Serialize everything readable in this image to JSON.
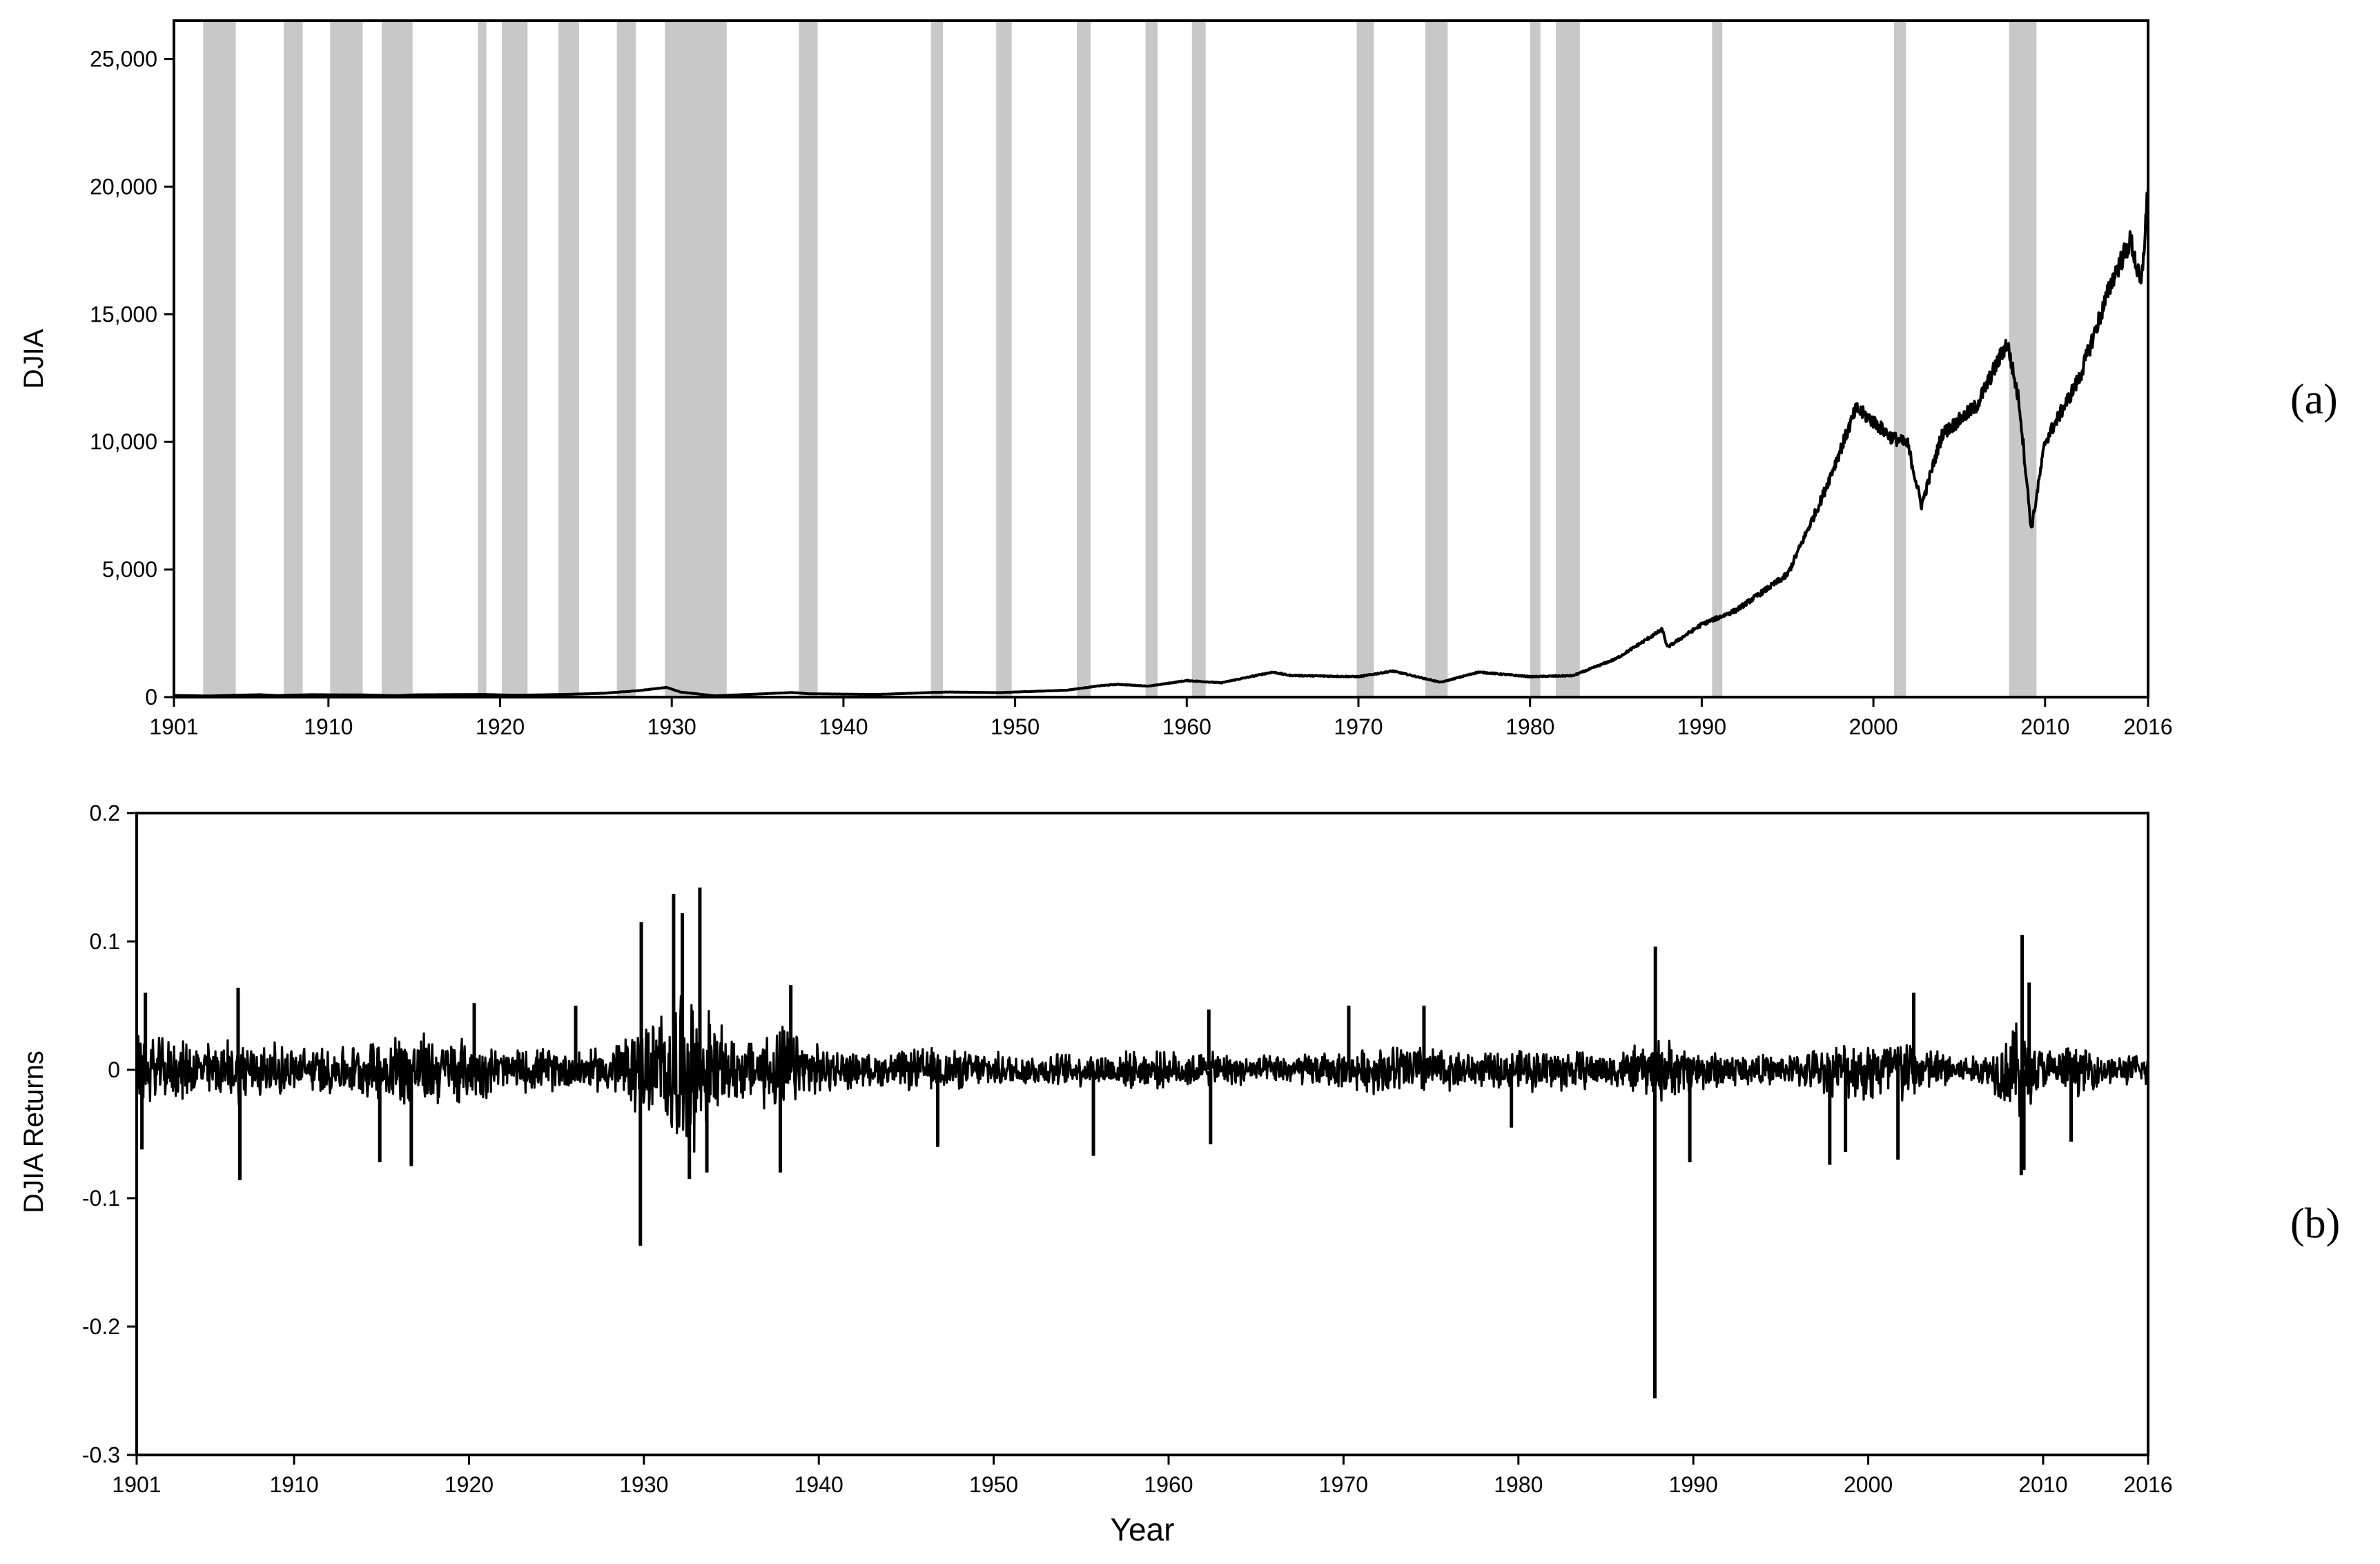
{
  "panel_labels": {
    "a": "(a)",
    "b": "(b)"
  },
  "chart_data": [
    {
      "id": "a",
      "type": "line",
      "title": "",
      "xlabel": "",
      "ylabel": "DJIA",
      "xlim": [
        1901,
        2016
      ],
      "ylim": [
        0,
        26500
      ],
      "x_ticks": [
        1901,
        1910,
        1920,
        1930,
        1940,
        1950,
        1960,
        1970,
        1980,
        1990,
        2000,
        2010,
        2016
      ],
      "x_tick_labels": [
        "1901",
        "1910",
        "1920",
        "1930",
        "1940",
        "1950",
        "1960",
        "1970",
        "1980",
        "1990",
        "2000",
        "2010",
        "2016"
      ],
      "y_ticks": [
        0,
        5000,
        10000,
        15000,
        20000,
        25000
      ],
      "y_tick_labels": [
        "0",
        "5,000",
        "10,000",
        "15,000",
        "20,000",
        "25,000"
      ],
      "grid": false,
      "line_color": "#000000",
      "shade_color": "#c8c8c8",
      "shaded_periods": [
        [
          1902.7,
          1904.6
        ],
        [
          1907.4,
          1908.5
        ],
        [
          1910.1,
          1912.0
        ],
        [
          1913.1,
          1914.9
        ],
        [
          1918.7,
          1919.2
        ],
        [
          1920.1,
          1921.6
        ],
        [
          1923.4,
          1924.6
        ],
        [
          1926.8,
          1927.9
        ],
        [
          1929.6,
          1933.2
        ],
        [
          1937.4,
          1938.5
        ],
        [
          1945.1,
          1945.8
        ],
        [
          1948.9,
          1949.8
        ],
        [
          1953.6,
          1954.4
        ],
        [
          1957.6,
          1958.3
        ],
        [
          1960.3,
          1961.1
        ],
        [
          1969.9,
          1970.9
        ],
        [
          1973.9,
          1975.2
        ],
        [
          1980.0,
          1980.6
        ],
        [
          1981.5,
          1982.9
        ],
        [
          1990.6,
          1991.2
        ],
        [
          2001.2,
          2001.9
        ],
        [
          2007.9,
          2009.5
        ]
      ],
      "series": [
        {
          "x": [
            1901,
            1903,
            1906,
            1907,
            1909,
            1912,
            1914,
            1915,
            1919,
            1921,
            1924,
            1926,
            1928,
            1929.7,
            1930.5,
            1932.5,
            1935,
            1937,
            1938,
            1942,
            1946,
            1949,
            1953,
            1955,
            1956,
            1957.8,
            1960,
            1962,
            1965,
            1966,
            1970,
            1972,
            1974.8,
            1977,
            1980,
            1982.5,
            1985,
            1987.7,
            1988,
            1990,
            1992,
            1995,
            1997,
            1999,
            2000,
            2001,
            2002,
            2002.8,
            2004,
            2006,
            2007.8,
            2008.5,
            2009.2,
            2010,
            2012,
            2014,
            2015,
            2015.6,
            2016
          ],
          "y": [
            65,
            45,
            95,
            60,
            95,
            85,
            55,
            90,
            105,
            70,
            110,
            150,
            250,
            380,
            200,
            50,
            120,
            180,
            130,
            105,
            200,
            175,
            270,
            450,
            500,
            430,
            650,
            560,
            980,
            850,
            800,
            1020,
            580,
            980,
            800,
            840,
            1500,
            2650,
            1950,
            2850,
            3400,
            4800,
            7800,
            11300,
            10800,
            10200,
            9900,
            7500,
            10300,
            11400,
            13900,
            11500,
            6550,
            10000,
            12500,
            16500,
            17900,
            16000,
            20000
          ]
        }
      ]
    },
    {
      "id": "b",
      "type": "line",
      "title": "",
      "xlabel": "Year",
      "ylabel": "DJIA Returns",
      "xlim": [
        1901,
        2016
      ],
      "ylim": [
        -0.3,
        0.2
      ],
      "x_ticks": [
        1901,
        1910,
        1920,
        1930,
        1940,
        1950,
        1960,
        1970,
        1980,
        1990,
        2000,
        2010,
        2016
      ],
      "x_tick_labels": [
        "1901",
        "1910",
        "1920",
        "1930",
        "1940",
        "1950",
        "1960",
        "1970",
        "1980",
        "1990",
        "2000",
        "2010",
        "2016"
      ],
      "y_ticks": [
        -0.3,
        -0.2,
        -0.1,
        0,
        0.1,
        0.2
      ],
      "y_tick_labels": [
        "-0.3",
        "-0.2",
        "-0.1",
        "0",
        "0.1",
        "0.2"
      ],
      "grid": false,
      "line_color": "#000000",
      "volatility_band": {
        "x": [
          1901,
          1905,
          1907,
          1910,
          1914,
          1916,
          1920,
          1922,
          1925,
          1927,
          1928,
          1929.5,
          1930.5,
          1931.5,
          1932.5,
          1933.5,
          1934.5,
          1936,
          1937.5,
          1938.5,
          1940,
          1943,
          1946,
          1950,
          1955,
          1958,
          1962,
          1965,
          1970,
          1974,
          1975,
          1978,
          1980,
          1982,
          1985,
          1987.5,
          1988,
          1990,
          1995,
          1997,
          2000,
          2002,
          2003,
          2006,
          2007,
          2008.5,
          2009,
          2010,
          2012,
          2014,
          2016
        ],
        "half": [
          0.022,
          0.018,
          0.022,
          0.015,
          0.017,
          0.026,
          0.021,
          0.014,
          0.014,
          0.013,
          0.017,
          0.028,
          0.035,
          0.045,
          0.055,
          0.045,
          0.026,
          0.02,
          0.03,
          0.026,
          0.016,
          0.01,
          0.015,
          0.011,
          0.011,
          0.012,
          0.012,
          0.009,
          0.012,
          0.019,
          0.015,
          0.011,
          0.013,
          0.015,
          0.011,
          0.018,
          0.022,
          0.014,
          0.009,
          0.014,
          0.022,
          0.024,
          0.016,
          0.009,
          0.013,
          0.035,
          0.028,
          0.014,
          0.016,
          0.009,
          0.011
        ]
      },
      "spikes": [
        [
          1901.3,
          -0.062
        ],
        [
          1901.5,
          0.06
        ],
        [
          1906.9,
          -0.086
        ],
        [
          1906.8,
          0.064
        ],
        [
          1914.9,
          -0.072
        ],
        [
          1916.7,
          -0.075
        ],
        [
          1920.3,
          0.052
        ],
        [
          1926.1,
          0.05
        ],
        [
          1929.8,
          -0.137
        ],
        [
          1929.85,
          0.115
        ],
        [
          1931.7,
          0.137
        ],
        [
          1932.2,
          0.122
        ],
        [
          1932.6,
          -0.085
        ],
        [
          1933.2,
          0.142
        ],
        [
          1933.6,
          -0.08
        ],
        [
          1937.8,
          -0.08
        ],
        [
          1938.4,
          0.066
        ],
        [
          1946.8,
          -0.06
        ],
        [
          1955.7,
          -0.067
        ],
        [
          1962.4,
          -0.058
        ],
        [
          1962.3,
          0.047
        ],
        [
          1970.3,
          0.05
        ],
        [
          1974.6,
          0.05
        ],
        [
          1979.6,
          -0.045
        ],
        [
          1987.8,
          -0.256
        ],
        [
          1987.83,
          0.096
        ],
        [
          1989.8,
          -0.072
        ],
        [
          1997.8,
          -0.074
        ],
        [
          1998.7,
          -0.064
        ],
        [
          2001.7,
          -0.07
        ],
        [
          2002.6,
          0.06
        ],
        [
          2008.8,
          0.105
        ],
        [
          2008.75,
          -0.082
        ],
        [
          2008.9,
          -0.078
        ],
        [
          2009.2,
          0.068
        ],
        [
          2011.6,
          -0.056
        ]
      ]
    }
  ]
}
